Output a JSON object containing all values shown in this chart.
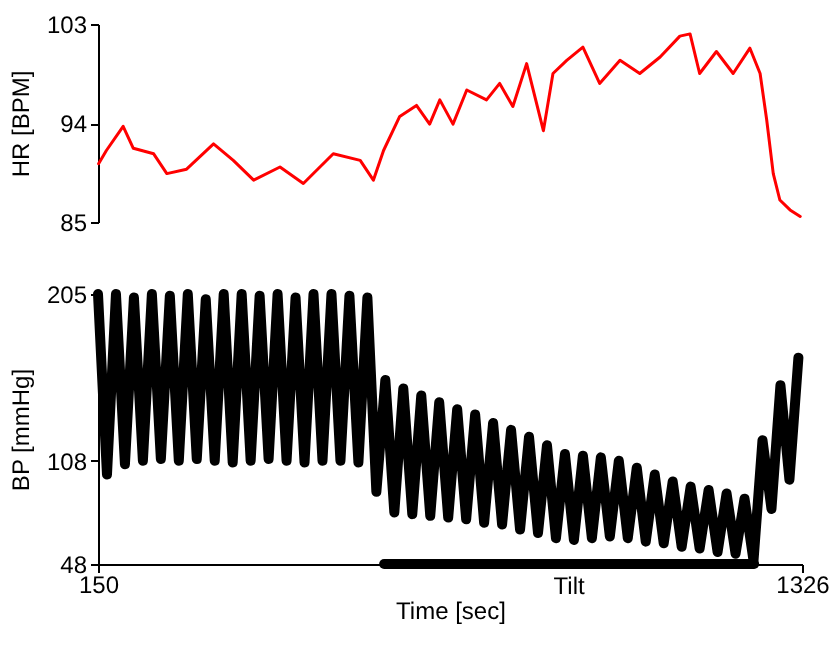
{
  "chart_data": [
    {
      "type": "line",
      "ylabel": "HR [BPM]",
      "tick_labels": "y",
      "xlim": [
        150,
        1326
      ],
      "ylim": [
        85,
        103
      ],
      "yticks": [
        85,
        94,
        103
      ],
      "x": [
        151,
        164,
        192,
        209,
        243,
        265,
        298,
        343,
        376,
        410,
        454,
        493,
        543,
        588,
        610,
        627,
        654,
        682,
        704,
        721,
        743,
        766,
        799,
        821,
        843,
        866,
        894,
        910,
        933,
        960,
        988,
        1022,
        1055,
        1089,
        1122,
        1139,
        1155,
        1183,
        1211,
        1239,
        1256,
        1267,
        1278,
        1289,
        1306,
        1323
      ],
      "series": [
        {
          "color": "#ff0000",
          "values": [
            90.3,
            91.5,
            93.7,
            91.7,
            91.2,
            89.4,
            89.8,
            92.1,
            90.6,
            88.8,
            90.0,
            88.5,
            91.2,
            90.6,
            88.8,
            91.5,
            94.6,
            95.6,
            93.9,
            96.1,
            93.9,
            97.0,
            96.1,
            97.6,
            95.5,
            99.4,
            93.3,
            98.5,
            99.7,
            100.9,
            97.6,
            99.7,
            98.5,
            100.0,
            101.9,
            102.1,
            98.5,
            100.5,
            98.5,
            100.8,
            98.5,
            94.3,
            89.4,
            87.0,
            86.1,
            85.5
          ]
        }
      ]
    },
    {
      "type": "line",
      "xlabel": "Time [sec]",
      "ylabel": "BP [mmHg]",
      "xlim": [
        150,
        1326
      ],
      "xticks": [
        150,
        1326
      ],
      "ylim": [
        48,
        205
      ],
      "yticks": [
        48,
        108,
        205
      ],
      "x": [
        150,
        165,
        180,
        195,
        210,
        225,
        240,
        255,
        270,
        285,
        300,
        315,
        330,
        345,
        360,
        375,
        390,
        405,
        420,
        435,
        450,
        465,
        480,
        495,
        510,
        525,
        540,
        555,
        570,
        585,
        600,
        615,
        630,
        645,
        660,
        675,
        690,
        705,
        720,
        735,
        750,
        765,
        780,
        795,
        810,
        825,
        840,
        855,
        870,
        885,
        900,
        915,
        930,
        945,
        960,
        975,
        990,
        1005,
        1020,
        1035,
        1050,
        1065,
        1080,
        1095,
        1110,
        1125,
        1140,
        1155,
        1170,
        1185,
        1200,
        1215,
        1230,
        1245,
        1260,
        1275,
        1290,
        1305,
        1320
      ],
      "annotations": [
        {
          "text": "Tilt",
          "x": 937,
          "y": 48
        }
      ],
      "series": [
        {
          "color": "#000000",
          "x": [
            628,
            1246
          ],
          "values": [
            48,
            48
          ]
        },
        {
          "color": "#000000",
          "values": [
            205,
            100,
            205,
            106,
            203,
            108,
            205,
            109,
            204,
            108,
            205,
            109,
            202,
            108,
            205,
            107,
            205,
            108,
            204,
            109,
            205,
            108,
            203,
            107,
            205,
            108,
            205,
            108,
            204,
            107,
            203,
            90,
            155,
            78,
            150,
            77,
            146,
            76,
            142,
            75,
            138,
            74,
            135,
            72,
            130,
            71,
            126,
            68,
            122,
            66,
            117,
            63,
            112,
            62,
            111,
            63,
            110,
            64,
            108,
            63,
            104,
            61,
            100,
            60,
            96,
            58,
            93,
            57,
            91,
            55,
            89,
            54,
            86,
            50,
            120,
            80,
            152,
            97,
            168
          ]
        }
      ]
    }
  ]
}
